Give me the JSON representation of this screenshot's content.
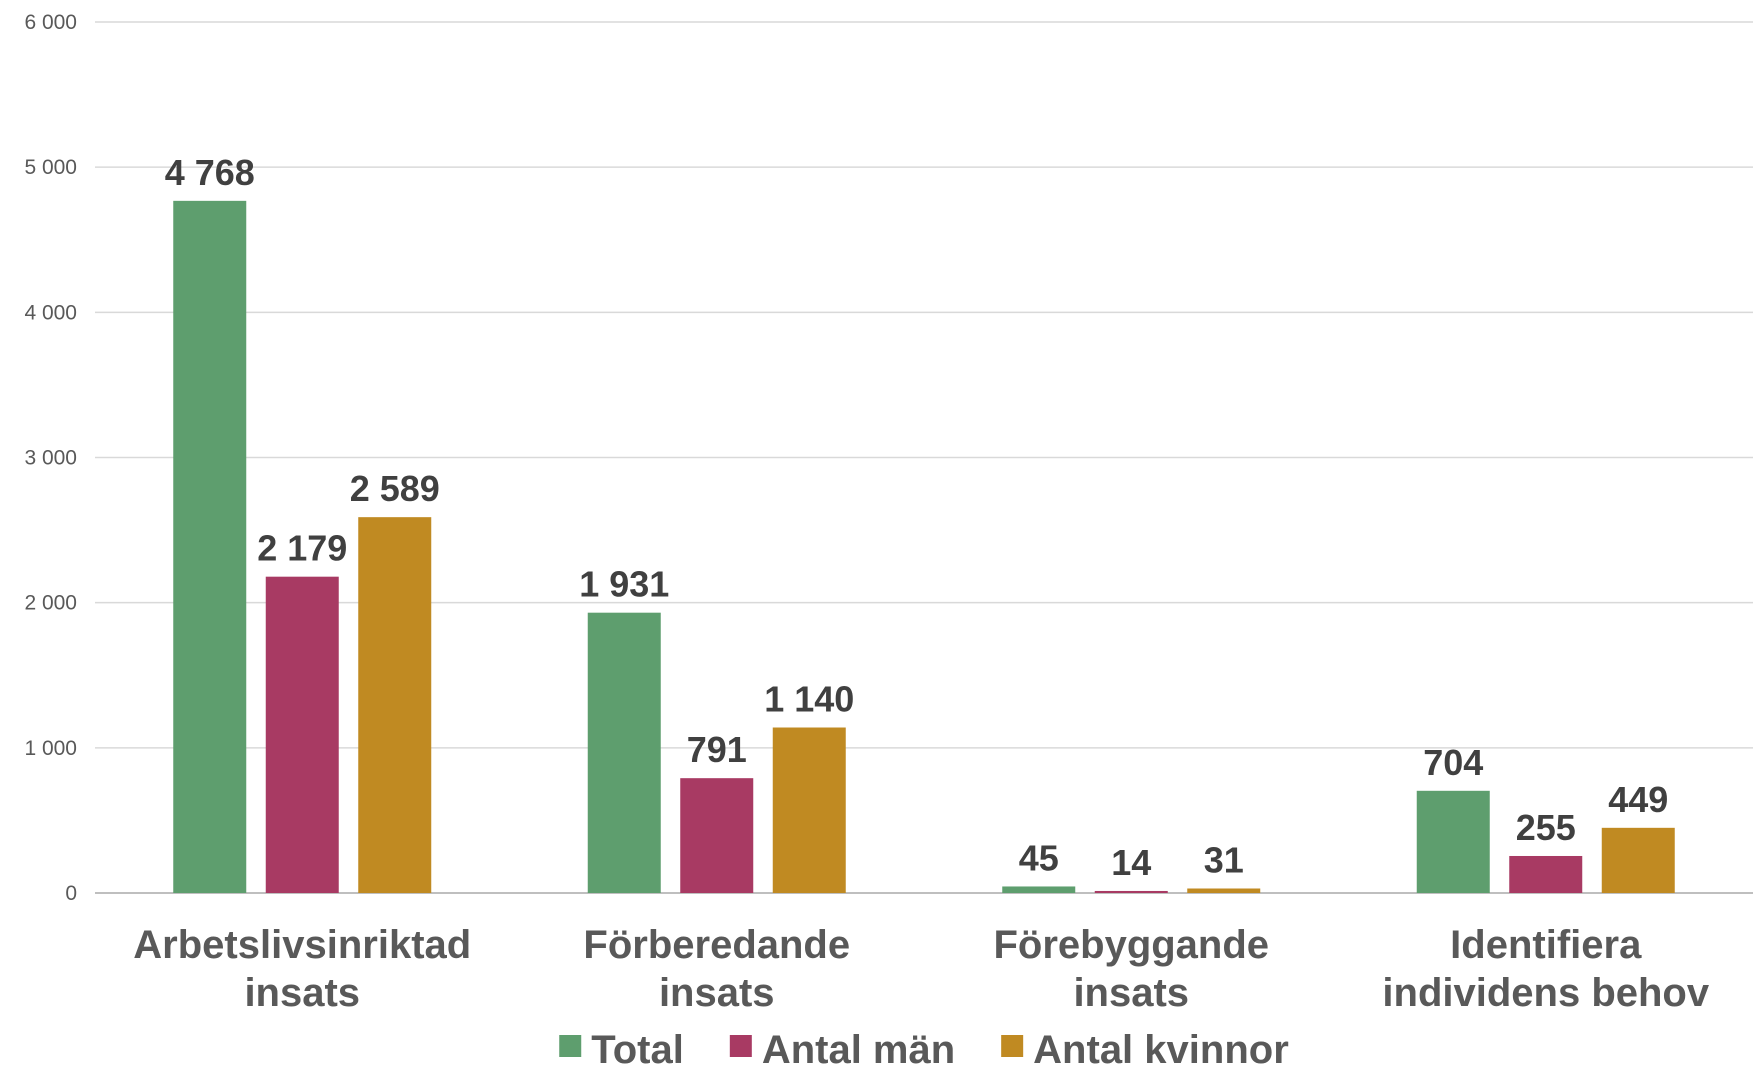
{
  "chart_data": {
    "type": "bar",
    "title": "",
    "xlabel": "",
    "ylabel": "",
    "ylim": [
      0,
      6000
    ],
    "yticks": [
      0,
      1000,
      2000,
      3000,
      4000,
      5000,
      6000
    ],
    "ytick_labels": [
      "0",
      "1 000",
      "2 000",
      "3 000",
      "4 000",
      "5 000",
      "6 000"
    ],
    "grid": true,
    "legend_position": "bottom",
    "categories": [
      [
        "Arbetslivsinriktad",
        "insats"
      ],
      [
        "Förberedande",
        "insats"
      ],
      [
        "Förebyggande",
        "insats"
      ],
      [
        "Identifiera",
        "individens behov"
      ]
    ],
    "series": [
      {
        "name": "Total",
        "color": "#5e9e6e",
        "values": [
          4768,
          1931,
          45,
          704
        ],
        "labels": [
          "4 768",
          "1 931",
          "45",
          "704"
        ]
      },
      {
        "name": "Antal män",
        "color": "#a83a63",
        "values": [
          2179,
          791,
          14,
          255
        ],
        "labels": [
          "2 179",
          "791",
          "14",
          "255"
        ]
      },
      {
        "name": "Antal kvinnor",
        "color": "#c08a22",
        "values": [
          2589,
          1140,
          31,
          449
        ],
        "labels": [
          "2 589",
          "1 140",
          "31",
          "449"
        ]
      }
    ]
  }
}
